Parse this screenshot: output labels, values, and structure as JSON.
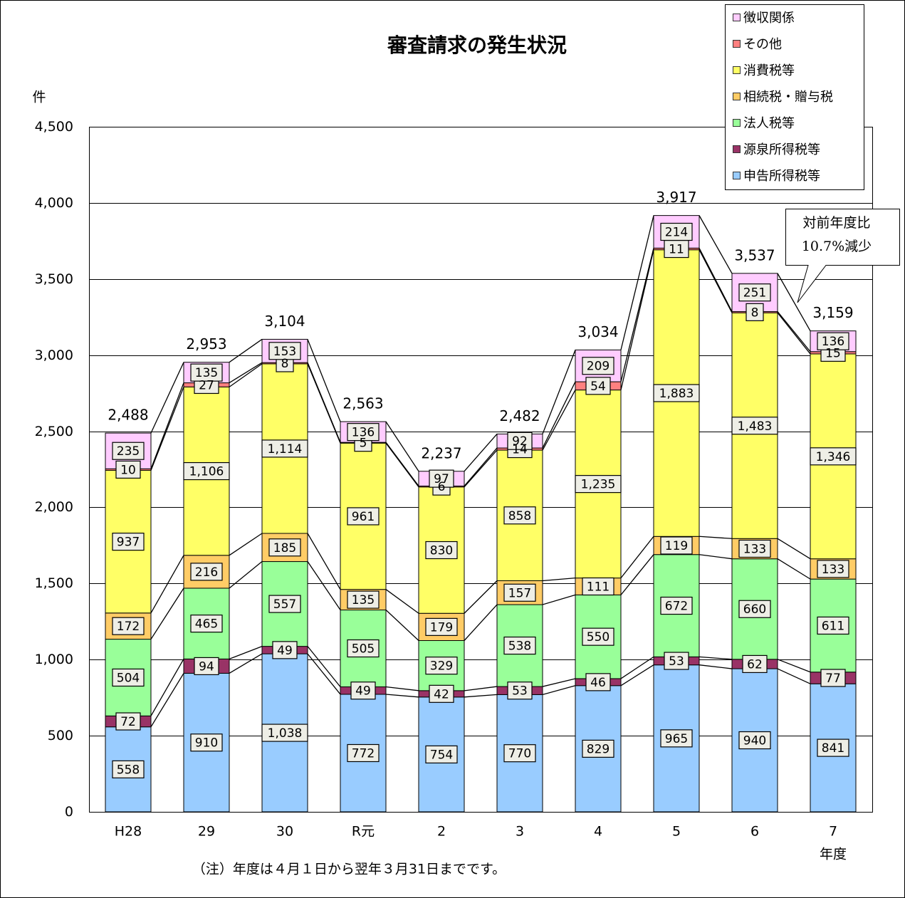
{
  "chart_data": {
    "type": "stacked_bar",
    "title": "審査請求の発生状況",
    "y_label": "件",
    "x_label": "年度",
    "note": "（注）年度は４月１日から翌年３月31日までです。",
    "callout": [
      "対前年度比",
      "10.7%減少"
    ],
    "categories": [
      "H28",
      "29",
      "30",
      "R元",
      "2",
      "3",
      "4",
      "5",
      "6",
      "7"
    ],
    "ylim": [
      0,
      4500
    ],
    "yticks": [
      0,
      500,
      {
        "value": 1000,
        "label": "1,000"
      },
      {
        "value": 1500,
        "label": "1,500"
      },
      {
        "value": 2000,
        "label": "2,000"
      },
      {
        "value": 2500,
        "label": "2,500"
      },
      {
        "value": 3000,
        "label": "3,000"
      },
      {
        "value": 3500,
        "label": "3,500"
      },
      {
        "value": 4000,
        "label": "4,000"
      },
      {
        "value": 4500,
        "label": "4,500"
      }
    ],
    "grid": true,
    "legend_position": "top-right",
    "series": [
      {
        "name": "申告所得税等",
        "color": "#99ccff",
        "values": [
          558,
          910,
          1038,
          772,
          754,
          770,
          829,
          965,
          940,
          841
        ],
        "value_labels": [
          "558",
          "910",
          "1,038",
          "772",
          "754",
          "770",
          "829",
          "965",
          "940",
          "841"
        ]
      },
      {
        "name": "源泉所得税等",
        "color": "#993366",
        "values": [
          72,
          94,
          49,
          49,
          42,
          53,
          46,
          53,
          62,
          77
        ]
      },
      {
        "name": "法人税等",
        "color": "#99ff99",
        "values": [
          504,
          465,
          557,
          505,
          329,
          538,
          550,
          672,
          660,
          611
        ]
      },
      {
        "name": "相続税・贈与税",
        "color": "#ffcc66",
        "values": [
          172,
          216,
          185,
          135,
          179,
          157,
          111,
          119,
          133,
          133
        ]
      },
      {
        "name": "消費税等",
        "color": "#ffff66",
        "values": [
          937,
          1106,
          1114,
          961,
          830,
          858,
          1235,
          1883,
          1483,
          1346
        ],
        "value_labels": [
          "937",
          "1,106",
          "1,114",
          "961",
          "830",
          "858",
          "1,235",
          "1,883",
          "1,483",
          "1,346"
        ]
      },
      {
        "name": "その他",
        "color": "#ff8080",
        "values": [
          10,
          27,
          8,
          5,
          6,
          14,
          54,
          11,
          8,
          15
        ]
      },
      {
        "name": "徴収関係",
        "color": "#ffccff",
        "values": [
          235,
          135,
          153,
          136,
          97,
          92,
          209,
          214,
          251,
          136
        ]
      }
    ],
    "totals": {
      "values": [
        2488,
        2953,
        3104,
        2563,
        2237,
        2482,
        3034,
        3917,
        3537,
        3159
      ],
      "value_labels": [
        "2,488",
        "2,953",
        "3,104",
        "2,563",
        "2,237",
        "2,482",
        "3,034",
        "3,917",
        "3,537",
        "3,159"
      ]
    }
  }
}
